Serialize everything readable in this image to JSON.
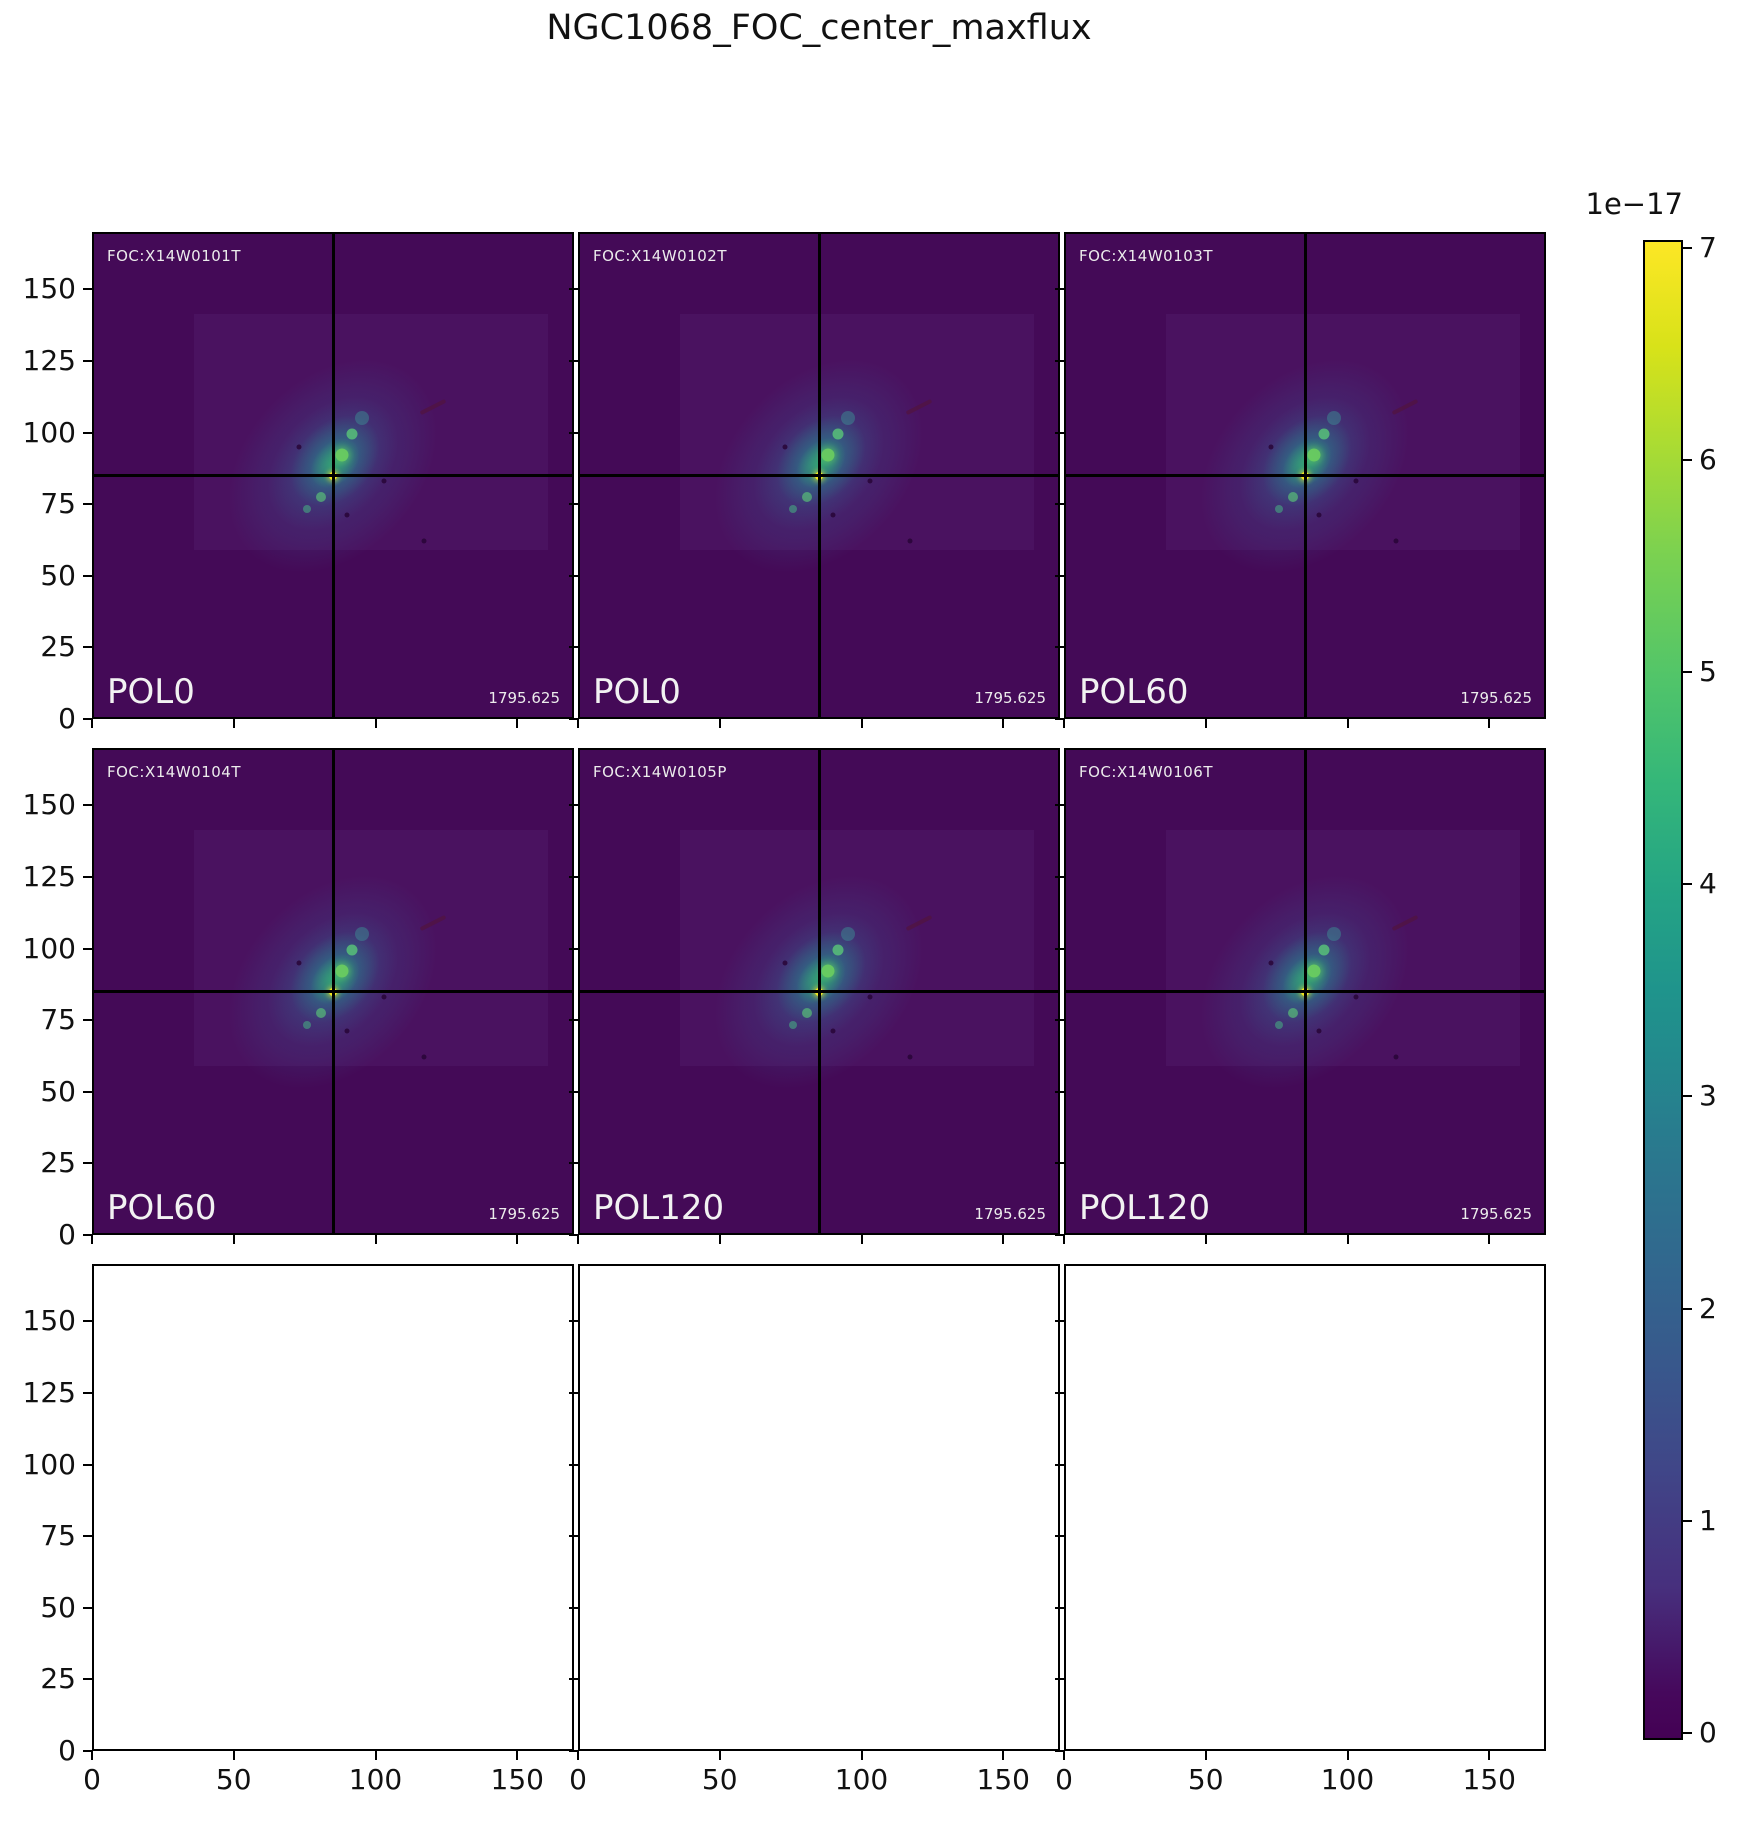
{
  "chart_data": {
    "type": "heatmap",
    "title": "NGC1068_FOC_center_maxflux",
    "colormap": "viridis",
    "layout": "3x3 grid of image subplots, bottom row empty, shared colorbar right",
    "axes": {
      "xlim": [
        0,
        170
      ],
      "ylim": [
        0,
        170
      ],
      "x_ticks": [
        0,
        50,
        100,
        150
      ],
      "y_ticks": [
        0,
        25,
        50,
        75,
        100,
        125,
        150
      ],
      "x_tick_labels": [
        "0",
        "50",
        "100",
        "150"
      ],
      "y_tick_labels": [
        "0",
        "25",
        "50",
        "75",
        "100",
        "125",
        "150"
      ]
    },
    "crosshair": {
      "x": 85,
      "y": 85
    },
    "panels": [
      {
        "row": 0,
        "col": 0,
        "empty": false,
        "foc": "FOC:X14W0101T",
        "pol": "POL0",
        "flux": "1795.625"
      },
      {
        "row": 0,
        "col": 1,
        "empty": false,
        "foc": "FOC:X14W0102T",
        "pol": "POL0",
        "flux": "1795.625"
      },
      {
        "row": 0,
        "col": 2,
        "empty": false,
        "foc": "FOC:X14W0103T",
        "pol": "POL60",
        "flux": "1795.625"
      },
      {
        "row": 1,
        "col": 0,
        "empty": false,
        "foc": "FOC:X14W0104T",
        "pol": "POL60",
        "flux": "1795.625"
      },
      {
        "row": 1,
        "col": 1,
        "empty": false,
        "foc": "FOC:X14W0105P",
        "pol": "POL120",
        "flux": "1795.625"
      },
      {
        "row": 1,
        "col": 2,
        "empty": false,
        "foc": "FOC:X14W0106T",
        "pol": "POL120",
        "flux": "1795.625"
      },
      {
        "row": 2,
        "col": 0,
        "empty": true
      },
      {
        "row": 2,
        "col": 1,
        "empty": true
      },
      {
        "row": 2,
        "col": 2,
        "empty": true
      }
    ],
    "colorbar": {
      "exponent_label": "1e−17",
      "ticks": [
        0,
        1,
        2,
        3,
        4,
        5,
        6,
        7
      ],
      "tick_labels": [
        "0",
        "1",
        "2",
        "3",
        "4",
        "5",
        "6",
        "7"
      ],
      "vmin": 0,
      "vmax": 7e-17,
      "position": "right"
    },
    "colors": {
      "image_background": "#440a57",
      "crosshair": "#000000",
      "viridis_low": "#440154",
      "viridis_high": "#fde725",
      "panel_text": "#ececec"
    }
  }
}
